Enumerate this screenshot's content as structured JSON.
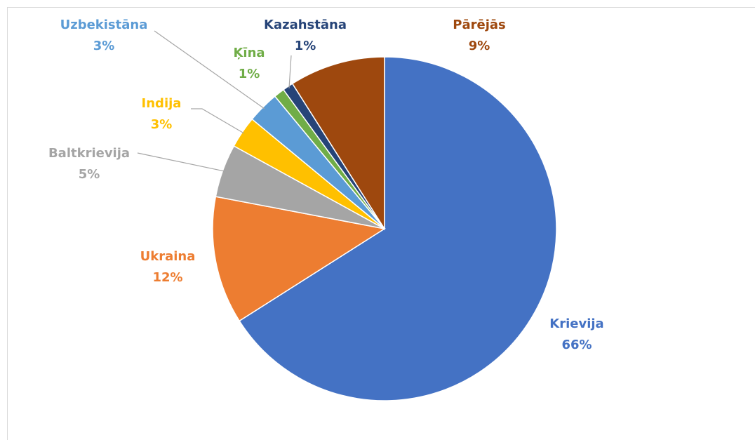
{
  "chart_data": {
    "type": "pie",
    "categories": [
      "Krievija",
      "Ukraina",
      "Baltkrievija",
      "Indija",
      "Uzbekistāna",
      "Ķīna",
      "Kazahstāna",
      "Pārējās"
    ],
    "values": [
      66,
      12,
      5,
      3,
      3,
      1,
      1,
      9
    ],
    "value_labels": [
      "66%",
      "12%",
      "5%",
      "3%",
      "3%",
      "1%",
      "1%",
      "9%"
    ],
    "colors": [
      "#4472c4",
      "#ed7d31",
      "#a5a5a5",
      "#ffc000",
      "#5b9bd5",
      "#70ad47",
      "#264478",
      "#9e480e"
    ]
  }
}
